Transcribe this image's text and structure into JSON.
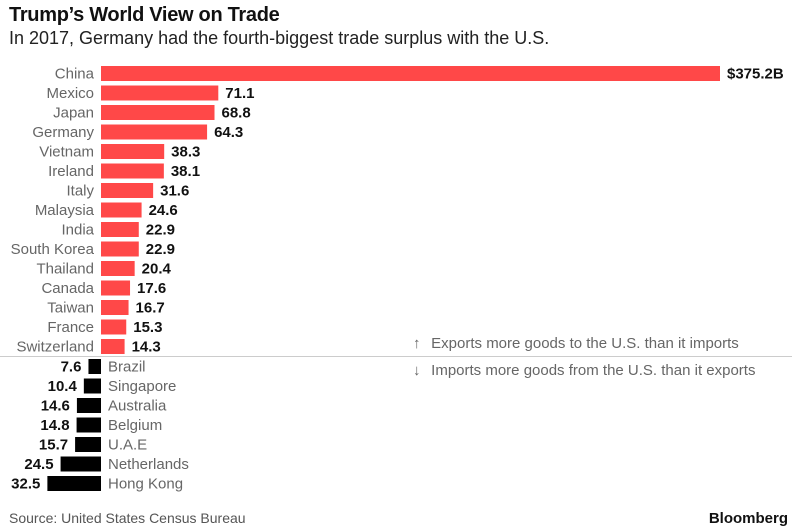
{
  "title": "Trump’s World View on Trade",
  "subtitle": "In 2017, Germany had the fourth-biggest trade surplus with the U.S.",
  "source": "Source: United States Census Bureau",
  "brand": "Bloomberg",
  "legend": {
    "surplus_label": "Exports more goods to the U.S. than it imports",
    "deficit_label": "Imports more goods from the U.S. than it exports",
    "surplus_icon": "up-arrow-icon",
    "deficit_icon": "down-arrow-icon"
  },
  "colors": {
    "surplus": "#ff4848",
    "deficit": "#000000",
    "divider": "#cccccc"
  },
  "chart_data": {
    "type": "bar",
    "orientation": "horizontal",
    "title": "Trump’s World View on Trade",
    "units": "billion USD",
    "series": [
      {
        "name": "Exports more goods to the U.S. than it imports",
        "categories": [
          "China",
          "Mexico",
          "Japan",
          "Germany",
          "Vietnam",
          "Ireland",
          "Italy",
          "Malaysia",
          "India",
          "South Korea",
          "Thailand",
          "Canada",
          "Taiwan",
          "France",
          "Switzerland"
        ],
        "values": [
          375.2,
          71.1,
          68.8,
          64.3,
          38.3,
          38.1,
          31.6,
          24.6,
          22.9,
          22.9,
          20.4,
          17.6,
          16.7,
          15.3,
          14.3
        ],
        "labels": [
          "$375.2B",
          "71.1",
          "68.8",
          "64.3",
          "38.3",
          "38.1",
          "31.6",
          "24.6",
          "22.9",
          "22.9",
          "20.4",
          "17.6",
          "16.7",
          "15.3",
          "14.3"
        ]
      },
      {
        "name": "Imports more goods from the U.S. than it exports",
        "categories": [
          "Brazil",
          "Singapore",
          "Australia",
          "Belgium",
          "U.A.E",
          "Netherlands",
          "Hong Kong"
        ],
        "values": [
          7.6,
          10.4,
          14.6,
          14.8,
          15.7,
          24.5,
          32.5
        ],
        "labels": [
          "7.6",
          "10.4",
          "14.6",
          "14.8",
          "15.7",
          "24.5",
          "32.5"
        ]
      }
    ]
  }
}
